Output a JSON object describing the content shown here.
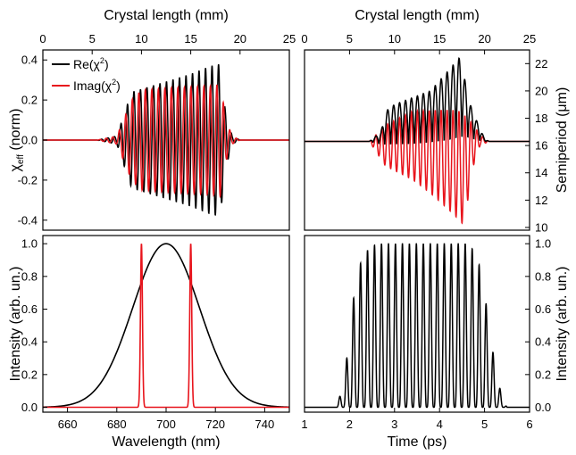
{
  "figure": {
    "colors": {
      "black": "#000000",
      "red": "#e8141c"
    }
  },
  "chart_data": [
    {
      "id": "chi_eff",
      "type": "line",
      "title": "",
      "top_axis": {
        "label": "Crystal length (mm)",
        "ticks": [
          "0",
          "5",
          "10",
          "15",
          "20",
          "25"
        ],
        "range": [
          0,
          25
        ]
      },
      "xlabel": "",
      "ylabel": "χeff (norm)",
      "ylabel_main": "χ",
      "ylabel_sub": "eff",
      "ylabel_rest": " (norm)",
      "xlim": [
        0,
        25
      ],
      "ylim": [
        -0.45,
        0.45
      ],
      "yticks": [
        "-0.4",
        "-0.2",
        "0.0",
        "0.2",
        "0.4"
      ],
      "legend": {
        "position": "top-left",
        "entries": [
          {
            "base": "Re(χ",
            "sup": "2",
            "close": ")",
            "color": "#000000"
          },
          {
            "base": "Imag(χ",
            "sup": "2",
            "close": ")",
            "color": "#e8141c"
          }
        ]
      },
      "series": [
        {
          "name": "Re(χ2)",
          "color": "#000000",
          "carrier_period_mm": 0.66,
          "segments": [
            [
              0,
              0
            ],
            [
              5.5,
              0
            ],
            [
              7.5,
              0.02
            ],
            [
              9,
              0.24
            ],
            [
              11,
              0.27
            ],
            [
              13,
              0.3
            ],
            [
              15,
              0.33
            ],
            [
              17,
              0.37
            ],
            [
              18,
              0.38
            ],
            [
              18.5,
              0.15
            ],
            [
              19.2,
              0.02
            ],
            [
              20,
              0
            ],
            [
              25,
              0
            ]
          ]
        },
        {
          "name": "Imag(χ2)",
          "color": "#e8141c",
          "carrier_period_mm": 0.66,
          "segments": [
            [
              0,
              0
            ],
            [
              5.5,
              0
            ],
            [
              7.5,
              0.02
            ],
            [
              9,
              0.2
            ],
            [
              10,
              0.25
            ],
            [
              13,
              0.26
            ],
            [
              17,
              0.27
            ],
            [
              18,
              0.28
            ],
            [
              18.6,
              0.1
            ],
            [
              19.2,
              0.02
            ],
            [
              20,
              0
            ],
            [
              25,
              0
            ]
          ]
        }
      ]
    },
    {
      "id": "semiperiod",
      "type": "line",
      "title": "",
      "top_axis": {
        "label": "Crystal length (mm)",
        "ticks": [
          "0",
          "5",
          "10",
          "15",
          "20",
          "25"
        ],
        "range": [
          0,
          25
        ]
      },
      "ylabel": "Semiperiod (μm)",
      "xlim": [
        0,
        25
      ],
      "ylim": [
        9.8,
        23
      ],
      "yticks": [
        "10",
        "12",
        "14",
        "16",
        "18",
        "20",
        "22"
      ],
      "series": [
        {
          "name": "black",
          "color": "#000000",
          "baseline": 16.3,
          "upper": [
            [
              7.2,
              16.3
            ],
            [
              8.5,
              17
            ],
            [
              9,
              18.5
            ],
            [
              10,
              19
            ],
            [
              12,
              19.5
            ],
            [
              14,
              20
            ],
            [
              16,
              21.5
            ],
            [
              17.3,
              22.5
            ],
            [
              18.3,
              19.2
            ],
            [
              19,
              18
            ],
            [
              20,
              16.5
            ],
            [
              20.5,
              16.3
            ]
          ],
          "lower": [
            [
              7.2,
              16.3
            ],
            [
              9,
              16
            ],
            [
              12,
              16
            ],
            [
              16,
              16.2
            ],
            [
              18,
              16.5
            ],
            [
              20,
              16.3
            ],
            [
              20.5,
              16.3
            ]
          ]
        },
        {
          "name": "red",
          "color": "#e8141c",
          "baseline": 16.3,
          "upper": [
            [
              7.2,
              16.3
            ],
            [
              9,
              17.5
            ],
            [
              12,
              18.5
            ],
            [
              15,
              18.6
            ],
            [
              17,
              18.6
            ],
            [
              18.2,
              18
            ],
            [
              19.5,
              16.8
            ],
            [
              20.5,
              16.3
            ]
          ],
          "lower": [
            [
              7.2,
              16.3
            ],
            [
              8,
              15.5
            ],
            [
              9,
              14.5
            ],
            [
              12,
              13.5
            ],
            [
              14,
              12.5
            ],
            [
              16.5,
              11
            ],
            [
              17.8,
              10.1
            ],
            [
              18.5,
              14
            ],
            [
              19.5,
              16
            ],
            [
              20.5,
              16.3
            ]
          ]
        }
      ]
    },
    {
      "id": "spectrum",
      "type": "line",
      "title": "",
      "xlabel": "Wavelength (nm)",
      "ylabel": "Intensity (arb. un.)",
      "xlim": [
        650,
        750
      ],
      "ylim": [
        -0.03,
        1.05
      ],
      "xticks": [
        "660",
        "680",
        "700",
        "720",
        "740"
      ],
      "yticks": [
        "0.0",
        "0.2",
        "0.4",
        "0.6",
        "0.8",
        "1.0"
      ],
      "series": [
        {
          "name": "black",
          "color": "#000000",
          "shape": "gaussian",
          "center": 700,
          "fwhm": 32,
          "peak": 1.0
        },
        {
          "name": "red",
          "color": "#e8141c",
          "shape": "two_lines",
          "peaks": [
            690,
            710
          ],
          "height": 1.0,
          "width": 0.4
        }
      ]
    },
    {
      "id": "time",
      "type": "line",
      "title": "",
      "xlabel": "Time (ps)",
      "ylabel": "Intensity (arb. un.)",
      "xlim": [
        1,
        6
      ],
      "ylim": [
        -0.03,
        1.05
      ],
      "xticks": [
        "1",
        "2",
        "3",
        "4",
        "5",
        "6"
      ],
      "yticks": [
        "0.0",
        "0.2",
        "0.4",
        "0.6",
        "0.8",
        "1.0"
      ],
      "series": [
        {
          "name": "black",
          "color": "#000000",
          "shape": "pulse_train",
          "period": 0.155,
          "start": 1.78,
          "envelope": [
            [
              1.7,
              0
            ],
            [
              1.8,
              0.08
            ],
            [
              1.9,
              0.2
            ],
            [
              2.05,
              0.6
            ],
            [
              2.2,
              0.85
            ],
            [
              2.35,
              0.95
            ],
            [
              2.6,
              1.0
            ],
            [
              4.6,
              1.0
            ],
            [
              4.8,
              0.95
            ],
            [
              4.95,
              0.8
            ],
            [
              5.1,
              0.5
            ],
            [
              5.25,
              0.22
            ],
            [
              5.4,
              0.05
            ],
            [
              5.5,
              0
            ]
          ]
        }
      ]
    }
  ]
}
